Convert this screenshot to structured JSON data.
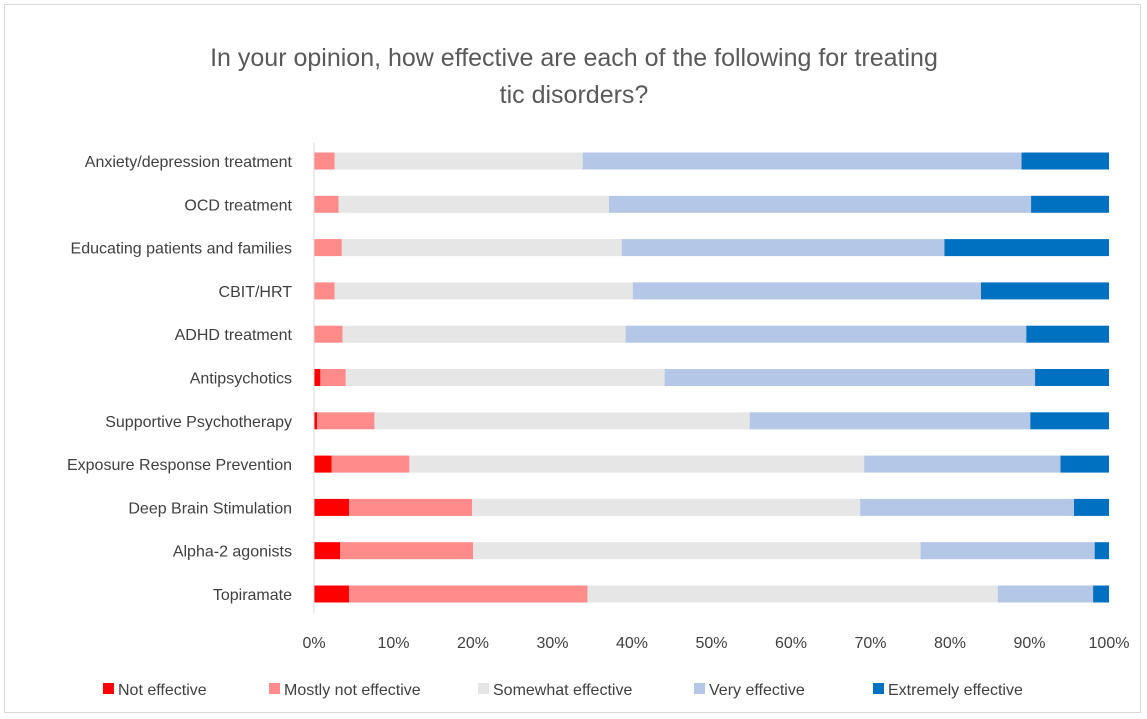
{
  "chart_data": {
    "type": "bar",
    "orientation": "horizontal",
    "stacked": "percent",
    "title_lines": [
      "In your opinion, how effective are each of the following for treating",
      "tic disorders?"
    ],
    "categories": [
      "Anxiety/depression treatment",
      "OCD treatment",
      "Educating patients and families",
      "CBIT/HRT",
      "ADHD treatment",
      "Antipsychotics",
      "Supportive Psychotherapy",
      "Exposure Response Prevention",
      "Deep Brain Stimulation",
      "Alpha-2 agonists",
      "Topiramate"
    ],
    "series": [
      {
        "name": "Not effective",
        "color": "#ff0000",
        "values": [
          0,
          0,
          0,
          0,
          0,
          0.8,
          0.4,
          2.2,
          4.4,
          3.3,
          4.4
        ]
      },
      {
        "name": "Mostly not effective",
        "color": "#ff8b8b",
        "values": [
          2.6,
          3.1,
          3.5,
          2.6,
          3.6,
          3.2,
          7.2,
          9.8,
          15.5,
          16.7,
          30.0
        ]
      },
      {
        "name": "Somewhat effective",
        "color": "#e6e6e6",
        "values": [
          31.2,
          34.0,
          35.2,
          37.5,
          35.6,
          40.1,
          47.2,
          57.2,
          48.8,
          56.3,
          51.6
        ]
      },
      {
        "name": "Very effective",
        "color": "#b4c7e7",
        "values": [
          55.2,
          53.1,
          40.6,
          43.8,
          50.4,
          46.6,
          35.3,
          24.7,
          26.9,
          21.9,
          12.0
        ]
      },
      {
        "name": "Extremely effective",
        "color": "#0070c0",
        "values": [
          11.0,
          9.8,
          20.7,
          16.1,
          10.4,
          9.3,
          9.9,
          6.1,
          4.4,
          1.8,
          2.0
        ]
      }
    ],
    "x_ticks": [
      "0%",
      "10%",
      "20%",
      "30%",
      "40%",
      "50%",
      "60%",
      "70%",
      "80%",
      "90%",
      "100%"
    ],
    "xlim": [
      0,
      100
    ],
    "grid": false,
    "legend_position": "bottom"
  }
}
